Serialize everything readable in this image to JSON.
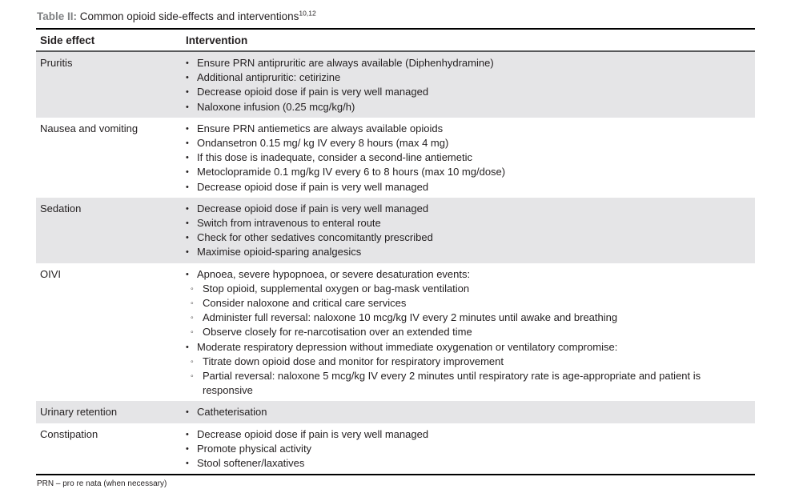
{
  "table": {
    "title_label": "Table II:",
    "title_text": " Common opioid side-effects and interventions",
    "title_superscript": "10,12",
    "columns": [
      "Side effect",
      "Intervention"
    ],
    "markers": {
      "level1": "•",
      "level2": "◦"
    },
    "rows": [
      {
        "side_effect": "Pruritis",
        "shaded": true,
        "items": [
          {
            "level": 1,
            "text": "Ensure PRN antipruritic are always available (Diphenhydramine)"
          },
          {
            "level": 1,
            "text": "Additional antipruritic: cetirizine"
          },
          {
            "level": 1,
            "text": "Decrease opioid dose if pain is very well managed"
          },
          {
            "level": 1,
            "text": "Naloxone infusion (0.25 mcg/kg/h)"
          }
        ]
      },
      {
        "side_effect": "Nausea and vomiting",
        "shaded": false,
        "items": [
          {
            "level": 1,
            "text": "Ensure PRN antiemetics are always available opioids"
          },
          {
            "level": 1,
            "text": "Ondansetron 0.15 mg/ kg IV every 8 hours (max 4 mg)"
          },
          {
            "level": 1,
            "text": "If this dose is inadequate, consider a second-line antiemetic"
          },
          {
            "level": 1,
            "text": "Metoclopramide 0.1 mg/kg IV every 6 to 8 hours (max 10 mg/dose)"
          },
          {
            "level": 1,
            "text": "Decrease opioid dose if pain is very well managed"
          }
        ]
      },
      {
        "side_effect": "Sedation",
        "shaded": true,
        "items": [
          {
            "level": 1,
            "text": "Decrease opioid dose if pain is very well managed"
          },
          {
            "level": 1,
            "text": "Switch from intravenous to enteral route"
          },
          {
            "level": 1,
            "text": "Check for other sedatives concomitantly prescribed"
          },
          {
            "level": 1,
            "text": "Maximise opioid-sparing analgesics"
          }
        ]
      },
      {
        "side_effect": "OIVI",
        "shaded": false,
        "items": [
          {
            "level": 1,
            "text": "Apnoea, severe hypopnoea, or severe desaturation events:"
          },
          {
            "level": 2,
            "text": "Stop opioid, supplemental oxygen or bag-mask ventilation"
          },
          {
            "level": 2,
            "text": "Consider naloxone and critical care services"
          },
          {
            "level": 2,
            "text": "Administer full reversal: naloxone 10 mcg/kg IV every 2 minutes until awake and breathing"
          },
          {
            "level": 2,
            "text": "Observe closely for re-narcotisation over an extended time"
          },
          {
            "level": 1,
            "text": "Moderate respiratory depression without immediate oxygenation or ventilatory compromise:"
          },
          {
            "level": 2,
            "text": "Titrate down opioid dose and monitor for respiratory improvement"
          },
          {
            "level": 2,
            "text": "Partial reversal: naloxone 5 mcg/kg IV every 2 minutes until respiratory rate is age-appropriate and patient is responsive"
          }
        ]
      },
      {
        "side_effect": "Urinary retention",
        "shaded": true,
        "items": [
          {
            "level": 1,
            "text": "Catheterisation"
          }
        ]
      },
      {
        "side_effect": "Constipation",
        "shaded": false,
        "items": [
          {
            "level": 1,
            "text": "Decrease opioid dose if pain is very well managed"
          },
          {
            "level": 1,
            "text": "Promote physical activity"
          },
          {
            "level": 1,
            "text": "Stool softener/laxatives"
          }
        ]
      }
    ],
    "footnote": "PRN – pro re nata (when necessary)"
  },
  "colors": {
    "shaded_row_bg": "#e5e5e7",
    "title_label_gray": "#808284",
    "header_rule": "#58595b",
    "outer_rule": "#000000",
    "text": "#231f20"
  }
}
